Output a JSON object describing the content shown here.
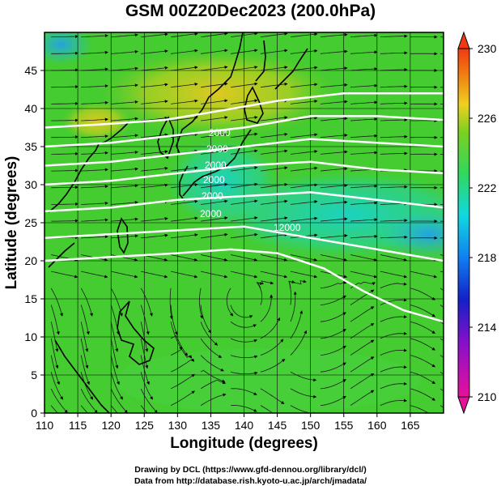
{
  "title": "GSM 00Z20Dec2023 (200.0hPa)",
  "xlabel": "Longitude (degrees)",
  "ylabel": "Latitude  (degrees)",
  "x_ticks": [
    "110",
    "115",
    "120",
    "125",
    "130",
    "135",
    "140",
    "145",
    "150",
    "155",
    "160",
    "165"
  ],
  "y_ticks": [
    "0",
    "5",
    "10",
    "15",
    "20",
    "25",
    "30",
    "35",
    "40",
    "45"
  ],
  "colorbar_ticks": [
    "210",
    "214",
    "218",
    "222",
    "226",
    "230"
  ],
  "credit_line1": "Drawing by DCL (https://www.gfd-dennou.org/library/dcl/)",
  "credit_line2": "Data from http://database.rish.kyoto-u.ac.jp/arch/jmadata/",
  "contour_labels": [
    "2000",
    "2000",
    "2000",
    "2000",
    "2000",
    "2000",
    "12000"
  ],
  "map_data": {
    "lon_range": [
      110,
      170
    ],
    "lat_range": [
      0,
      50
    ],
    "colorbar_range": [
      210,
      230
    ],
    "colors": {
      "magenta": "#e8109a",
      "blue": "#1320c8",
      "cyan": "#10d8e0",
      "green": "#3ecf2a",
      "yellow": "#f0d020",
      "red": "#f03a10"
    }
  }
}
